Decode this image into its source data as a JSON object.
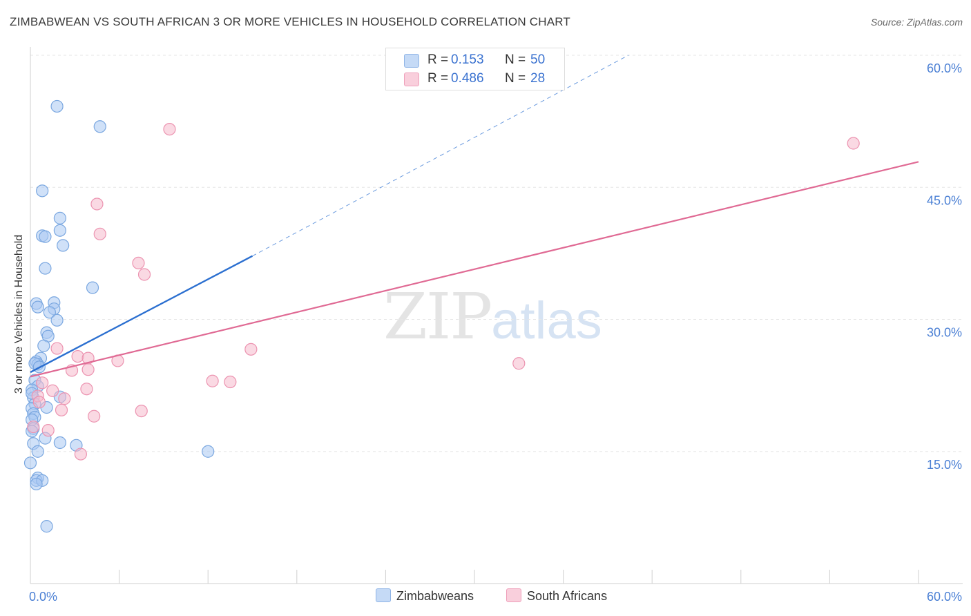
{
  "title": "ZIMBABWEAN VS SOUTH AFRICAN 3 OR MORE VEHICLES IN HOUSEHOLD CORRELATION CHART",
  "source": "Source: ZipAtlas.com",
  "watermark": {
    "zip": "ZIP",
    "atlas": "atlas"
  },
  "legend": {
    "rows": [
      {
        "r_label": "R =",
        "r_value": "0.153",
        "n_label": "N =",
        "n_value": "50",
        "color": "#a9c8f2"
      },
      {
        "r_label": "R =",
        "r_value": "0.486",
        "n_label": "N =",
        "n_value": "28",
        "color": "#f6b9cc"
      }
    ],
    "bottom": [
      "Zimbabweans",
      "South Africans"
    ]
  },
  "colors": {
    "blue_fill": "#a9c8f2",
    "blue_stroke": "#7aa7e0",
    "blue_line": "#2b6fd0",
    "pink_fill": "#f6b9cc",
    "pink_stroke": "#ec93b0",
    "pink_line": "#e06a94",
    "axis_label": "#4a7fd4",
    "grid": "#e6e6e6"
  },
  "chart_data": {
    "type": "scatter",
    "title": "ZIMBABWEAN VS SOUTH AFRICAN 3 OR MORE VEHICLES IN HOUSEHOLD CORRELATION CHART",
    "xlabel": "",
    "ylabel": "3 or more Vehicles in Household",
    "xlim": [
      0,
      60
    ],
    "ylim": [
      0,
      60
    ],
    "x_tick_labels": [
      "0.0%",
      "60.0%"
    ],
    "y_ticks": [
      15,
      30,
      45,
      60
    ],
    "y_tick_labels": [
      "15.0%",
      "30.0%",
      "45.0%",
      "60.0%"
    ],
    "grid": true,
    "legend_position": "top-center",
    "series": [
      {
        "name": "Zimbabweans",
        "points": [
          [
            1.8,
            54.2
          ],
          [
            4.7,
            51.9
          ],
          [
            0.8,
            44.6
          ],
          [
            2.0,
            41.5
          ],
          [
            2.0,
            40.1
          ],
          [
            0.8,
            39.5
          ],
          [
            1.0,
            39.4
          ],
          [
            2.2,
            38.4
          ],
          [
            1.0,
            35.8
          ],
          [
            4.2,
            33.6
          ],
          [
            0.4,
            31.8
          ],
          [
            1.6,
            31.9
          ],
          [
            0.5,
            31.4
          ],
          [
            1.6,
            31.2
          ],
          [
            1.3,
            30.8
          ],
          [
            1.8,
            29.9
          ],
          [
            1.1,
            28.5
          ],
          [
            1.2,
            28.1
          ],
          [
            0.9,
            27.0
          ],
          [
            0.7,
            25.6
          ],
          [
            0.4,
            25.2
          ],
          [
            0.5,
            24.9
          ],
          [
            0.3,
            23.1
          ],
          [
            0.5,
            22.4
          ],
          [
            0.1,
            22.0
          ],
          [
            0.2,
            21.1
          ],
          [
            2.0,
            21.2
          ],
          [
            0.3,
            20.4
          ],
          [
            1.1,
            20.0
          ],
          [
            0.1,
            19.9
          ],
          [
            0.2,
            19.3
          ],
          [
            0.3,
            18.9
          ],
          [
            0.1,
            18.6
          ],
          [
            0.2,
            17.6
          ],
          [
            0.1,
            17.3
          ],
          [
            1.0,
            16.5
          ],
          [
            2.0,
            16.0
          ],
          [
            3.1,
            15.7
          ],
          [
            0.2,
            15.9
          ],
          [
            0.5,
            15.0
          ],
          [
            12.0,
            15.0
          ],
          [
            0.0,
            13.7
          ],
          [
            0.5,
            12.0
          ],
          [
            0.4,
            11.7
          ],
          [
            0.8,
            11.7
          ],
          [
            0.4,
            11.3
          ],
          [
            1.1,
            6.5
          ],
          [
            0.3,
            25.0
          ],
          [
            0.6,
            24.6
          ],
          [
            0.1,
            21.6
          ]
        ],
        "trend": {
          "x": [
            0,
            15
          ],
          "y": [
            24.0,
            37.2
          ],
          "dashed_extension": {
            "x": [
              15,
              40.4
            ],
            "y": [
              37.2,
              60.0
            ]
          }
        }
      },
      {
        "name": "South Africans",
        "points": [
          [
            9.4,
            51.6
          ],
          [
            55.6,
            50.0
          ],
          [
            4.5,
            43.1
          ],
          [
            4.7,
            39.7
          ],
          [
            7.3,
            36.4
          ],
          [
            7.7,
            35.1
          ],
          [
            1.8,
            26.7
          ],
          [
            14.9,
            26.6
          ],
          [
            3.2,
            25.8
          ],
          [
            3.9,
            25.6
          ],
          [
            5.9,
            25.3
          ],
          [
            33.0,
            25.0
          ],
          [
            3.9,
            24.3
          ],
          [
            2.8,
            24.2
          ],
          [
            0.8,
            22.8
          ],
          [
            12.3,
            23.0
          ],
          [
            13.5,
            22.9
          ],
          [
            3.8,
            22.1
          ],
          [
            1.5,
            21.9
          ],
          [
            0.5,
            21.3
          ],
          [
            2.3,
            21.0
          ],
          [
            0.6,
            20.6
          ],
          [
            2.1,
            19.7
          ],
          [
            7.5,
            19.6
          ],
          [
            4.3,
            19.0
          ],
          [
            0.2,
            17.8
          ],
          [
            1.2,
            17.4
          ],
          [
            3.4,
            14.7
          ]
        ],
        "trend": {
          "x": [
            0,
            60
          ],
          "y": [
            23.5,
            47.9
          ]
        }
      }
    ]
  }
}
